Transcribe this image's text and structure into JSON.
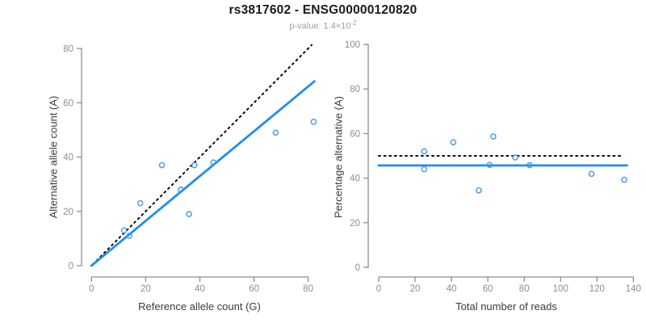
{
  "header": {
    "title": "rs3817602 - ENSG00000120820",
    "pvalue_prefix": "p-value: 1.4×10",
    "pvalue_exponent": "-2"
  },
  "colors": {
    "fit_line_blue": "#1E8EF0",
    "point_stroke_blue": "#4499E8",
    "dotted_line_black": "#0a0a0a",
    "axis_gray": "#8e8e8e",
    "tick_label_gray": "#8e8e8e",
    "axis_title_dark": "#3c3c3c",
    "subtitle_gray": "#9e9e9e"
  },
  "chart_data": [
    {
      "type": "scatter",
      "xlabel": "Reference allele count (G)",
      "ylabel": "Alternative allele count (A)",
      "xlim": [
        0,
        80
      ],
      "ylim": [
        0,
        80
      ],
      "x_ticks": [
        0,
        20,
        40,
        60,
        80
      ],
      "y_ticks": [
        0,
        20,
        40,
        60,
        80
      ],
      "grid": false,
      "points": [
        [
          12,
          13
        ],
        [
          14,
          11
        ],
        [
          18,
          23
        ],
        [
          26,
          37
        ],
        [
          33,
          28
        ],
        [
          36,
          19
        ],
        [
          38,
          37
        ],
        [
          45,
          38
        ],
        [
          68,
          49
        ],
        [
          82,
          53
        ]
      ],
      "lines": [
        {
          "name": "identity-line",
          "desc": "y = x",
          "style": "dotted",
          "color": "#0a0a0a",
          "x1": 0.5,
          "y1": 0.5,
          "x2": 81.3,
          "y2": 81.3
        },
        {
          "name": "fit-line",
          "desc": "regression slope ~0.825",
          "style": "solid",
          "color": "#1E8EF0",
          "x1": 0,
          "y1": 0,
          "x2": 82.3,
          "y2": 67.9
        }
      ]
    },
    {
      "type": "scatter",
      "xlabel": "Total number of reads",
      "ylabel": "Percentage alternative (A)",
      "xlim": [
        0,
        140
      ],
      "ylim": [
        0,
        100
      ],
      "x_ticks": [
        0,
        20,
        40,
        60,
        80,
        100,
        120,
        140
      ],
      "y_ticks": [
        0,
        20,
        40,
        60,
        80,
        100
      ],
      "grid": false,
      "points": [
        [
          25,
          52
        ],
        [
          25,
          44
        ],
        [
          41,
          56.1
        ],
        [
          55,
          34.5
        ],
        [
          61,
          45.9
        ],
        [
          63,
          58.7
        ],
        [
          75,
          49.3
        ],
        [
          83,
          45.8
        ],
        [
          117,
          41.9
        ],
        [
          135,
          39.3
        ]
      ],
      "lines": [
        {
          "name": "null-line",
          "desc": "50% reference",
          "style": "dotted",
          "color": "#0a0a0a",
          "x1": 0,
          "y1": 50,
          "x2": 133,
          "y2": 50
        },
        {
          "name": "fit-line",
          "desc": "fitted mean percentage ~45.7%",
          "style": "solid",
          "color": "#1E8EF0",
          "x1": 0,
          "y1": 45.7,
          "x2": 136.5,
          "y2": 45.7
        }
      ]
    }
  ]
}
